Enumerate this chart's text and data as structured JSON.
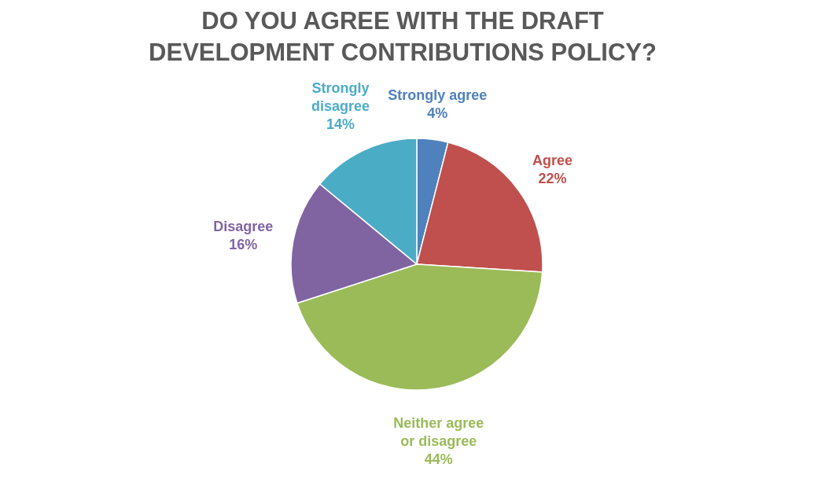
{
  "chart_data": {
    "type": "pie",
    "title": "DO YOU AGREE WITH THE DRAFT DEVELOPMENT CONTRIBUTIONS POLICY?",
    "categories": [
      "Strongly agree",
      "Agree",
      "Neither agree or disagree",
      "Disagree",
      "Strongly disagree"
    ],
    "values": [
      4,
      22,
      44,
      16,
      14
    ],
    "colors": [
      "#4f81bd",
      "#c0504d",
      "#9bbb59",
      "#8064a2",
      "#4bacc6"
    ],
    "value_labels": [
      "4%",
      "22%",
      "44%",
      "16%",
      "14%"
    ],
    "legend": false
  }
}
